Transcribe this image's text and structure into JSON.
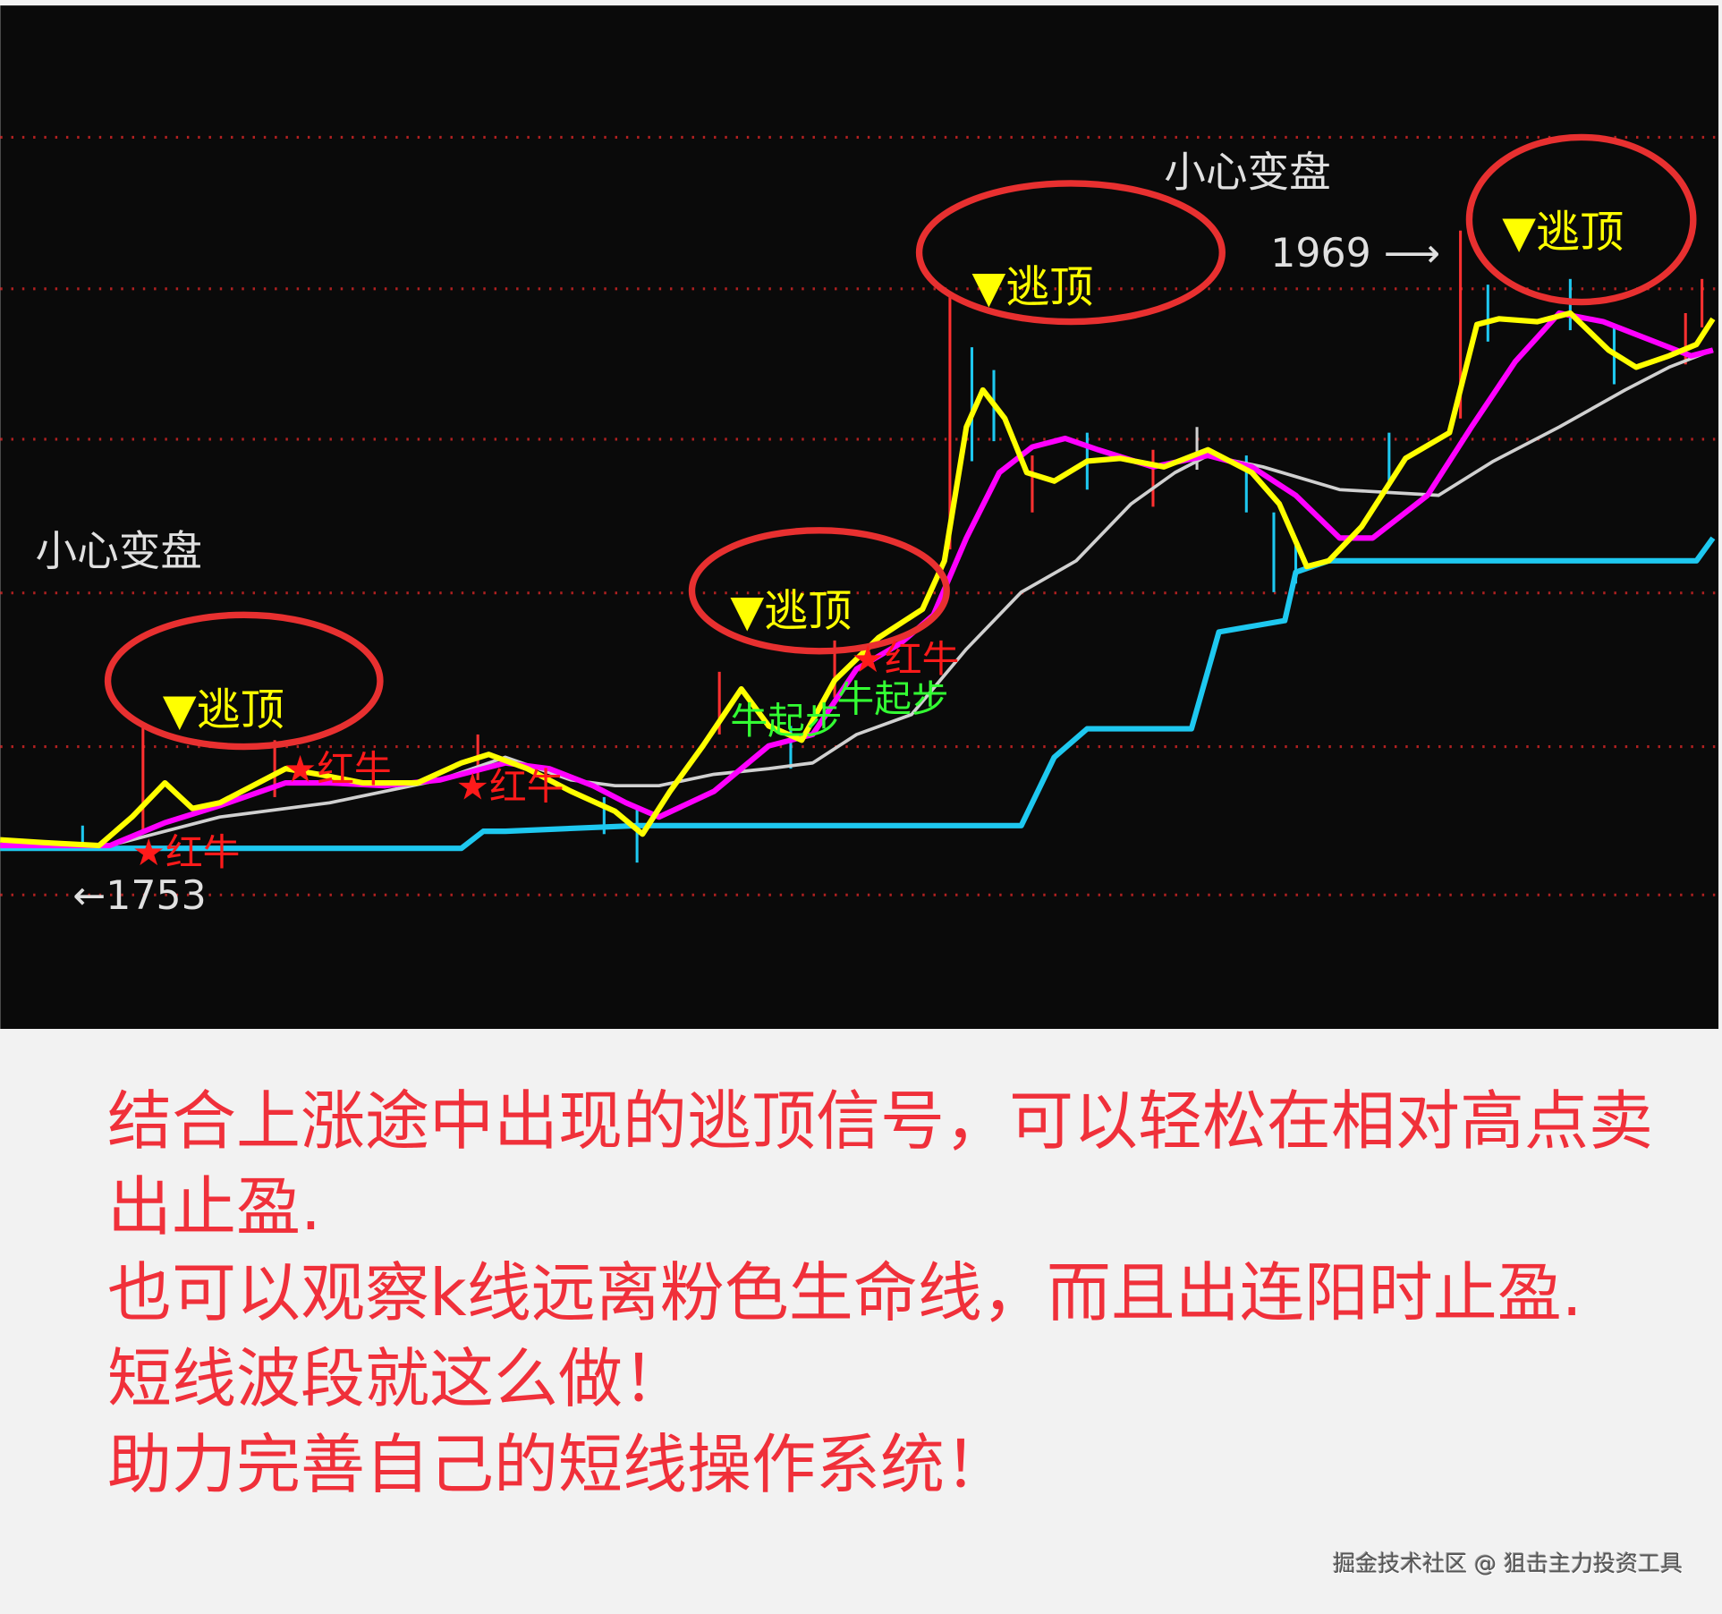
{
  "chart_data": {
    "type": "line",
    "title": "",
    "xlabel": "",
    "ylabel": "",
    "grid": true,
    "background": "#0a0a0a",
    "series": [
      {
        "color": "#ffff00",
        "x": [
          0,
          4,
          9,
          12,
          15,
          17.5,
          20,
          23,
          26,
          29,
          33,
          38,
          42,
          44.5,
          48,
          52,
          56,
          58.5,
          61,
          64,
          67.5,
          70,
          73,
          76,
          80,
          84,
          86,
          88,
          89.5,
          91.5,
          93.5,
          96,
          99,
          102,
          106,
          110,
          114,
          116.5,
          119,
          121,
          124,
          128,
          132,
          134.5,
          136.5,
          140,
          143,
          146.5,
          149,
          152,
          154.5,
          156
        ],
        "values": [
          1755,
          1754,
          1753,
          1763,
          1775,
          1766,
          1768,
          1774,
          1780,
          1778,
          1775,
          1775,
          1782,
          1785,
          1780,
          1772,
          1765,
          1757,
          1772,
          1788,
          1808,
          1795,
          1790,
          1811,
          1826,
          1836,
          1853,
          1900,
          1913,
          1903,
          1884,
          1881,
          1888,
          1889,
          1886,
          1892,
          1884,
          1873,
          1851,
          1853,
          1865,
          1889,
          1898,
          1936,
          1938,
          1937,
          1940,
          1927,
          1921,
          1925,
          1929,
          1938
        ]
      },
      {
        "color": "#ff00ff",
        "x": [
          0,
          10,
          15,
          20,
          26,
          30,
          35,
          40,
          46,
          50,
          54,
          57,
          60,
          65,
          70,
          74,
          78,
          82,
          85,
          88,
          91,
          94,
          97,
          100,
          105,
          110,
          114,
          118,
          122,
          125,
          130,
          134,
          138,
          142,
          146,
          150,
          154,
          156
        ],
        "values": [
          1753,
          1753,
          1761,
          1767,
          1775,
          1775,
          1774,
          1776,
          1782,
          1780,
          1774,
          1768,
          1763,
          1772,
          1788,
          1792,
          1815,
          1824,
          1834,
          1861,
          1884,
          1893,
          1896,
          1892,
          1886,
          1890,
          1886,
          1876,
          1861,
          1861,
          1876,
          1900,
          1923,
          1940,
          1937,
          1931,
          1925,
          1927
        ]
      },
      {
        "color": "#d0d0d0",
        "x": [
          10,
          20,
          30,
          40,
          46,
          52,
          56,
          60,
          65,
          70,
          74,
          78,
          83,
          88,
          93,
          98,
          103,
          107,
          110,
          115,
          122,
          131,
          136,
          142,
          148,
          152,
          156
        ],
        "values": [
          1753,
          1763,
          1768,
          1776,
          1784,
          1776,
          1774,
          1774,
          1778,
          1780,
          1782,
          1792,
          1799,
          1822,
          1842,
          1853,
          1873,
          1884,
          1890,
          1886,
          1878,
          1876,
          1888,
          1900,
          1913,
          1921,
          1927
        ]
      },
      {
        "color": "#1ec8f0",
        "x": [
          0,
          42,
          44,
          46,
          58,
          93,
          96,
          99,
          108.5,
          111,
          117,
          118,
          121,
          154.5,
          156
        ],
        "values": [
          1752,
          1752,
          1758,
          1758,
          1760,
          1760,
          1784,
          1794,
          1794,
          1828,
          1832,
          1849,
          1853,
          1853,
          1861
        ]
      }
    ],
    "wicks": [
      {
        "x": 13,
        "low": 1757,
        "high": 1795,
        "color": "#ff3030"
      },
      {
        "x": 7.5,
        "low": 1753,
        "high": 1760,
        "color": "#1ec8f0"
      },
      {
        "x": 25,
        "low": 1770,
        "high": 1790,
        "color": "#ff3030"
      },
      {
        "x": 43.5,
        "low": 1776,
        "high": 1792,
        "color": "#ff3030"
      },
      {
        "x": 55,
        "low": 1757,
        "high": 1770,
        "color": "#1ec8f0"
      },
      {
        "x": 58,
        "low": 1747,
        "high": 1766,
        "color": "#1ec8f0"
      },
      {
        "x": 65.5,
        "low": 1792,
        "high": 1814,
        "color": "#ff3030"
      },
      {
        "x": 72,
        "low": 1780,
        "high": 1795,
        "color": "#1ec8f0"
      },
      {
        "x": 76,
        "low": 1805,
        "high": 1825,
        "color": "#ff3030"
      },
      {
        "x": 86.5,
        "low": 1857,
        "high": 1946,
        "color": "#ff3030"
      },
      {
        "x": 88.5,
        "low": 1888,
        "high": 1928,
        "color": "#1ec8f0"
      },
      {
        "x": 90.5,
        "low": 1895,
        "high": 1920,
        "color": "#1ec8f0"
      },
      {
        "x": 94,
        "low": 1870,
        "high": 1890,
        "color": "#ff3030"
      },
      {
        "x": 99,
        "low": 1878,
        "high": 1898,
        "color": "#1ec8f0"
      },
      {
        "x": 105,
        "low": 1872,
        "high": 1892,
        "color": "#ff3030"
      },
      {
        "x": 109,
        "low": 1885,
        "high": 1900,
        "color": "#d0d0d0"
      },
      {
        "x": 113.5,
        "low": 1870,
        "high": 1890,
        "color": "#1ec8f0"
      },
      {
        "x": 116,
        "low": 1842,
        "high": 1870,
        "color": "#1ec8f0"
      },
      {
        "x": 118,
        "low": 1845,
        "high": 1860,
        "color": "#1ec8f0"
      },
      {
        "x": 126.5,
        "low": 1880,
        "high": 1898,
        "color": "#1ec8f0"
      },
      {
        "x": 133,
        "low": 1903,
        "high": 1969,
        "color": "#ff3030"
      },
      {
        "x": 135.5,
        "low": 1930,
        "high": 1950,
        "color": "#1ec8f0"
      },
      {
        "x": 143,
        "low": 1934,
        "high": 1952,
        "color": "#1ec8f0"
      },
      {
        "x": 147,
        "low": 1915,
        "high": 1935,
        "color": "#1ec8f0"
      },
      {
        "x": 153.5,
        "low": 1922,
        "high": 1940,
        "color": "#ff3030"
      },
      {
        "x": 155,
        "low": 1935,
        "high": 1952,
        "color": "#ff3030"
      }
    ],
    "annotations": {
      "caution_1": "小心变盘",
      "caution_2": "小心变盘",
      "low_label": "←1753",
      "high_label": "1969 ⟶",
      "escape_top": "▼逃顶",
      "red_bull": "★红牛",
      "bull_start": "牛起步"
    },
    "colors": {
      "ellipse": "#e83030",
      "grid": "#b02020",
      "escape_text": "#ffff00",
      "red_bull": "#ff1a1a",
      "bull_start": "#33ff33"
    }
  },
  "caption": {
    "line1": "结合上涨途中出现的逃顶信号，可以轻松在相对高点卖出止盈.",
    "line2": "也可以观察k线远离粉色生命线，而且出连阳时止盈.",
    "line3": "短线波段就这么做！",
    "line4": "助力完善自己的短线操作系统！"
  },
  "watermark": "掘金技术社区 @ 狙击主力投资工具"
}
